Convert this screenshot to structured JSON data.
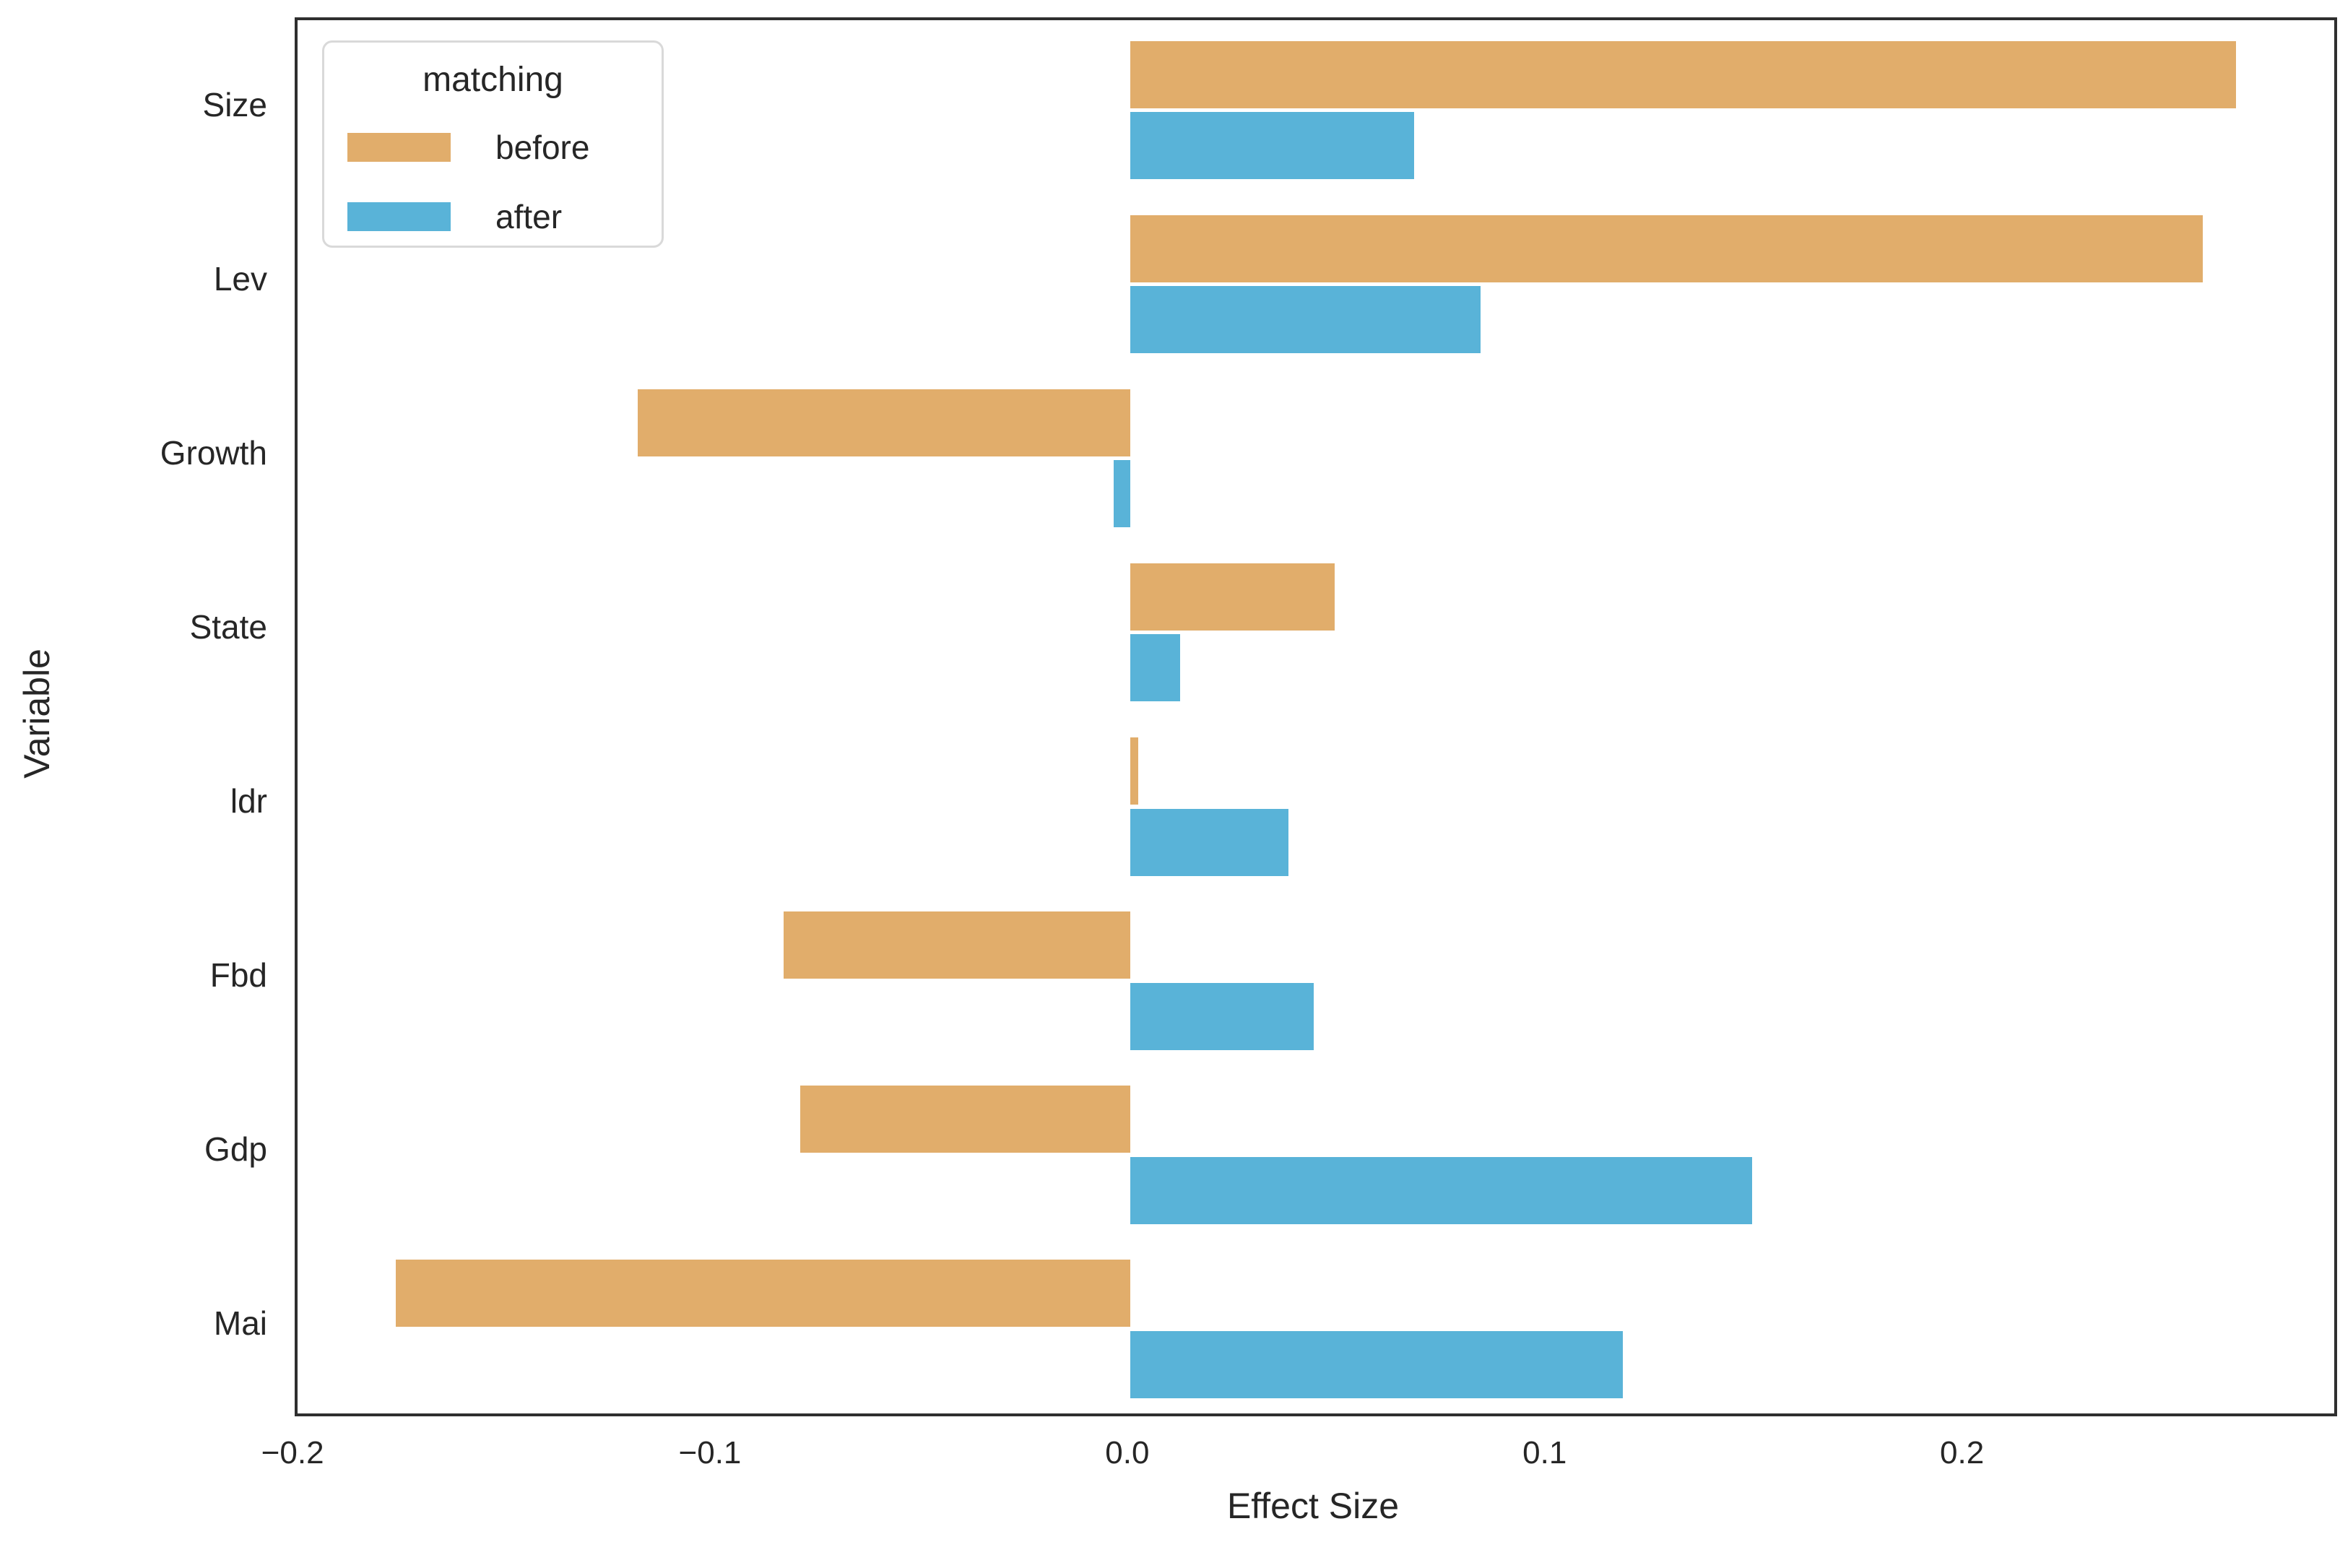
{
  "chart_data": {
    "type": "bar",
    "orientation": "horizontal",
    "title": "",
    "xlabel": "Effect Size",
    "ylabel": "Variable",
    "categories": [
      "Size",
      "Lev",
      "Growth",
      "State",
      "ldr",
      "Fbd",
      "Gdp",
      "Mai"
    ],
    "series": [
      {
        "name": "before",
        "color": "#e1ad6b",
        "values": [
          0.265,
          0.257,
          -0.118,
          0.049,
          0.002,
          -0.083,
          -0.079,
          -0.176
        ]
      },
      {
        "name": "after",
        "color": "#59b3d8",
        "values": [
          0.068,
          0.084,
          -0.004,
          0.012,
          0.038,
          0.044,
          0.149,
          0.118
        ]
      }
    ],
    "xlim": [
      -0.1995,
      0.2885
    ],
    "x_ticks": [
      {
        "value": -0.2,
        "label": "−0.2"
      },
      {
        "value": -0.1,
        "label": "−0.1"
      },
      {
        "value": 0.0,
        "label": "0.0"
      },
      {
        "value": 0.1,
        "label": "0.1"
      },
      {
        "value": 0.2,
        "label": "0.2"
      }
    ],
    "legend": {
      "title": "matching",
      "entries": [
        "before",
        "after"
      ],
      "position": "upper-left"
    },
    "grid": false,
    "colors": {
      "before": "#e1ad6b",
      "after": "#59b3d8",
      "text": "#262626",
      "spine": "#2f2f2f",
      "legend_border": "#d9d9d9",
      "background": "#ffffff"
    }
  }
}
